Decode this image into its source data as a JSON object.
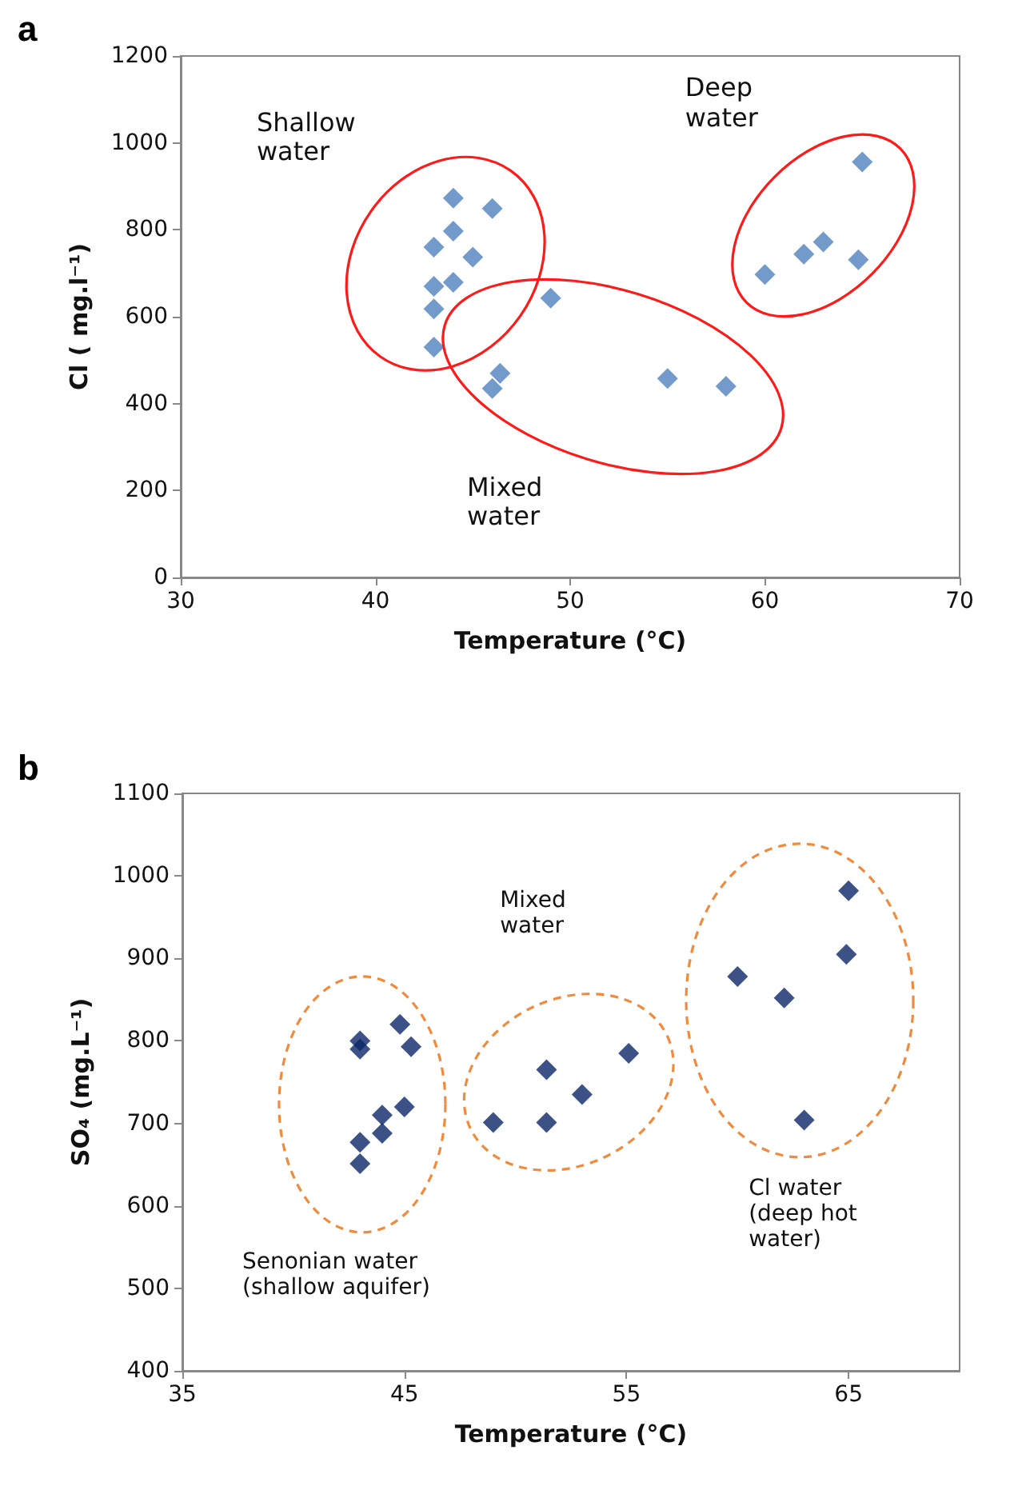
{
  "chart_data": [
    {
      "type": "scatter",
      "title": "a",
      "xlabel": "Temperature (°C)",
      "ylabel": "Cl ( mg.l⁻¹)",
      "marker": "diamond",
      "grid": false,
      "xlim": [
        30,
        70
      ],
      "xticks": [
        30,
        40,
        50,
        60,
        70
      ],
      "ylim": [
        0,
        1200
      ],
      "yticks": [
        0,
        200,
        400,
        600,
        800,
        1000,
        1200
      ],
      "series": [
        {
          "color": "#4f81bd",
          "x": [
            44,
            46,
            44,
            43,
            45,
            43,
            44,
            43,
            43,
            49,
            46.4,
            46,
            55,
            58,
            60,
            62,
            63,
            64.8,
            65
          ],
          "values": [
            873,
            849,
            797,
            760,
            737,
            670,
            679,
            618,
            530,
            643,
            470,
            435,
            458,
            440,
            697,
            744,
            772,
            731,
            956
          ]
        }
      ],
      "annotations": [
        "Shallow\nwater",
        "Deep\nwater",
        "Mixed\nwater"
      ]
    },
    {
      "type": "scatter",
      "title": "b",
      "xlabel": "Temperature (°C)",
      "ylabel": "SO₄ (mg.L⁻¹)",
      "marker": "diamond",
      "grid": false,
      "xlim": [
        35,
        70
      ],
      "xticks": [
        35,
        45,
        55,
        65
      ],
      "ylim": [
        400,
        1100
      ],
      "yticks": [
        400,
        500,
        600,
        700,
        800,
        900,
        1000,
        1100
      ],
      "series": [
        {
          "color": "#0b2566",
          "x": [
            43,
            43,
            44.8,
            45.3,
            44,
            44,
            45,
            43,
            43,
            49,
            51.4,
            51.4,
            53,
            55.1,
            60,
            62.1,
            63,
            64.9,
            65
          ],
          "values": [
            800,
            790,
            820,
            793,
            710,
            688,
            720,
            677,
            651,
            701,
            765,
            701,
            735,
            785,
            878,
            852,
            704,
            905,
            982
          ]
        }
      ],
      "annotations": [
        "Mixed\nwater",
        "Senonian water\n(shallow aquifer)",
        "Cl water\n(deep hot\nwater)"
      ]
    }
  ]
}
